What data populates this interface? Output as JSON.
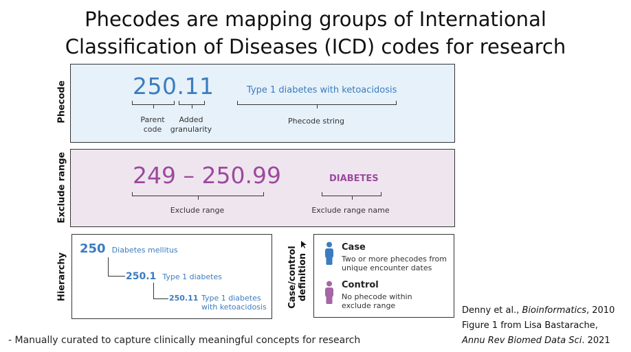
{
  "title_line1": "Phecodes are mapping groups of International",
  "title_line2": "Classification of Diseases (ICD) codes for research",
  "phecode_panel": {
    "side_label": "Phecode",
    "code_main": "250.",
    "code_extra": "11",
    "string": "Type 1 diabetes with ketoacidosis",
    "label_parent": "Parent\ncode",
    "label_added": "Added\ngranularity",
    "label_string": "Phecode string",
    "colors": {
      "bg": "#e6f1fa",
      "accent": "#3b7cbf"
    }
  },
  "exclude_panel": {
    "side_label": "Exclude range",
    "range": "249 – 250.99",
    "name": "DIABETES",
    "label_range": "Exclude range",
    "label_name": "Exclude range name",
    "colors": {
      "bg": "#efe5ef",
      "accent": "#9b4a9c"
    }
  },
  "hierarchy_panel": {
    "side_label": "Hierarchy",
    "levels": [
      {
        "code": "250",
        "name": "Diabetes mellitus"
      },
      {
        "code": "250.1",
        "name": "Type 1 diabetes"
      },
      {
        "code": "250.11",
        "name": "Type 1 diabetes\nwith ketoacidosis"
      }
    ]
  },
  "case_control_panel": {
    "side_label_line1": "Case/control",
    "side_label_line2": "definition",
    "case_title": "Case",
    "case_text": "Two or more phecodes from\nunique encounter dates",
    "control_title": "Control",
    "control_text": "No phecode within\nexclude range",
    "colors": {
      "case": "#3b7cbf",
      "control": "#a565a6"
    }
  },
  "footnote": "- Manually curated to capture clinically meaningful concepts for research",
  "citation": {
    "line1_prefix": "Denny et al., ",
    "line1_journal": "Bioinformatics",
    "line1_suffix": ", 2010",
    "line2": "Figure 1 from Lisa Bastarache,",
    "line3_journal": "Annu Rev Biomed Data Sci",
    "line3_suffix": ". 2021"
  }
}
